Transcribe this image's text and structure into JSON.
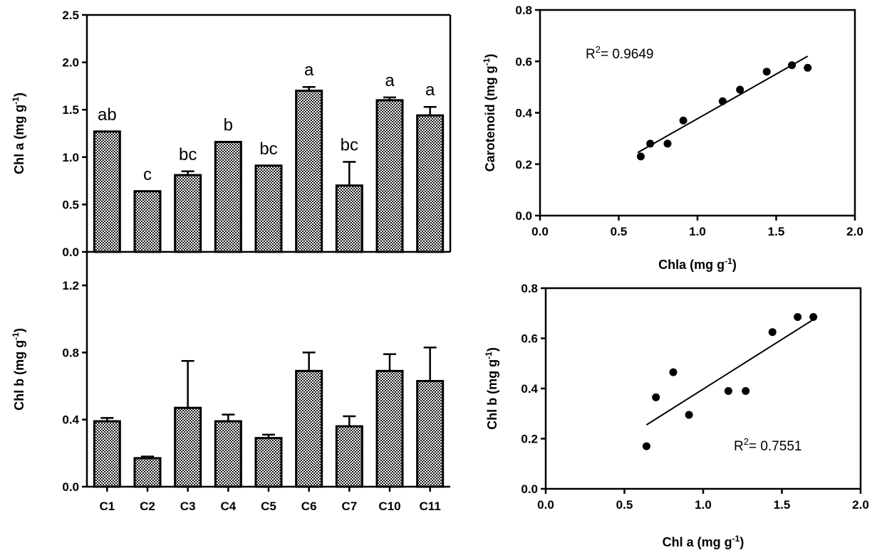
{
  "chart_data": [
    {
      "id": "chla_bar",
      "type": "bar",
      "ylabel": "Chl a  (mg g",
      "ylabel_sup": "-1",
      "ylabel_close": ")",
      "ylim": [
        0,
        2.5
      ],
      "yticks": [
        "0.0",
        "0.5",
        "1.0",
        "1.5",
        "2.0",
        "2.5"
      ],
      "categories": [
        "C1",
        "C2",
        "C3",
        "C4",
        "C5",
        "C6",
        "C7",
        "C10",
        "C11"
      ],
      "values": [
        1.27,
        0.64,
        0.81,
        1.16,
        0.91,
        1.7,
        0.7,
        1.6,
        1.44
      ],
      "errors": [
        0.0,
        0.0,
        0.04,
        0.0,
        0.0,
        0.04,
        0.25,
        0.03,
        0.09
      ],
      "letters": [
        "ab",
        "c",
        "bc",
        "b",
        "bc",
        "a",
        "bc",
        "a",
        "a"
      ]
    },
    {
      "id": "chlb_bar",
      "type": "bar",
      "ylabel": "Chl b  (mg g",
      "ylabel_sup": "-1",
      "ylabel_close": ")",
      "ylim": [
        0,
        1.4
      ],
      "yticks": [
        "0.0",
        "0.4",
        "0.8",
        "1.2"
      ],
      "categories": [
        "C1",
        "C2",
        "C3",
        "C4",
        "C5",
        "C6",
        "C7",
        "C10",
        "C11"
      ],
      "values": [
        0.39,
        0.17,
        0.47,
        0.39,
        0.29,
        0.69,
        0.36,
        0.69,
        0.63
      ],
      "errors": [
        0.02,
        0.01,
        0.28,
        0.04,
        0.02,
        0.11,
        0.06,
        0.1,
        0.2
      ]
    },
    {
      "id": "carot_scatter",
      "type": "scatter",
      "xlabel": "Chla (mg g",
      "xlabel_sup": "-1",
      "xlabel_close": ")",
      "ylabel": "Carotenoid (mg g",
      "ylabel_sup": "-1",
      "ylabel_close": ")",
      "xlim": [
        0,
        2.0
      ],
      "ylim": [
        0,
        0.8
      ],
      "xticks": [
        "0.0",
        "0.5",
        "1.0",
        "1.5",
        "2.0"
      ],
      "yticks": [
        "0.0",
        "0.2",
        "0.4",
        "0.6",
        "0.8"
      ],
      "x": [
        0.64,
        0.7,
        0.81,
        0.91,
        1.16,
        1.27,
        1.44,
        1.6,
        1.7
      ],
      "y": [
        0.23,
        0.28,
        0.28,
        0.37,
        0.445,
        0.49,
        0.56,
        0.585,
        0.575
      ],
      "fit": {
        "x": [
          0.62,
          1.7
        ],
        "y": [
          0.245,
          0.62
        ]
      },
      "r2_prefix": "R",
      "r2_sup": "2",
      "r2_value": "= 0.9649"
    },
    {
      "id": "chlb_scatter",
      "type": "scatter",
      "xlabel": "Chl a (mg g",
      "xlabel_sup": "-1",
      "xlabel_close": ")",
      "ylabel": "Chl b (mg g",
      "ylabel_sup": "-1",
      "ylabel_close": ")",
      "xlim": [
        0,
        2.0
      ],
      "ylim": [
        0,
        0.8
      ],
      "xticks": [
        "0.0",
        "0.5",
        "1.0",
        "1.5",
        "2.0"
      ],
      "yticks": [
        "0.0",
        "0.2",
        "0.4",
        "0.6",
        "0.8"
      ],
      "x": [
        0.64,
        0.7,
        0.81,
        0.91,
        1.16,
        1.27,
        1.44,
        1.6,
        1.7
      ],
      "y": [
        0.17,
        0.365,
        0.465,
        0.295,
        0.39,
        0.39,
        0.625,
        0.685,
        0.685
      ],
      "fit": {
        "x": [
          0.64,
          1.7
        ],
        "y": [
          0.255,
          0.675
        ]
      },
      "r2_prefix": "R",
      "r2_sup": "2",
      "r2_value": "= 0.7551"
    }
  ]
}
